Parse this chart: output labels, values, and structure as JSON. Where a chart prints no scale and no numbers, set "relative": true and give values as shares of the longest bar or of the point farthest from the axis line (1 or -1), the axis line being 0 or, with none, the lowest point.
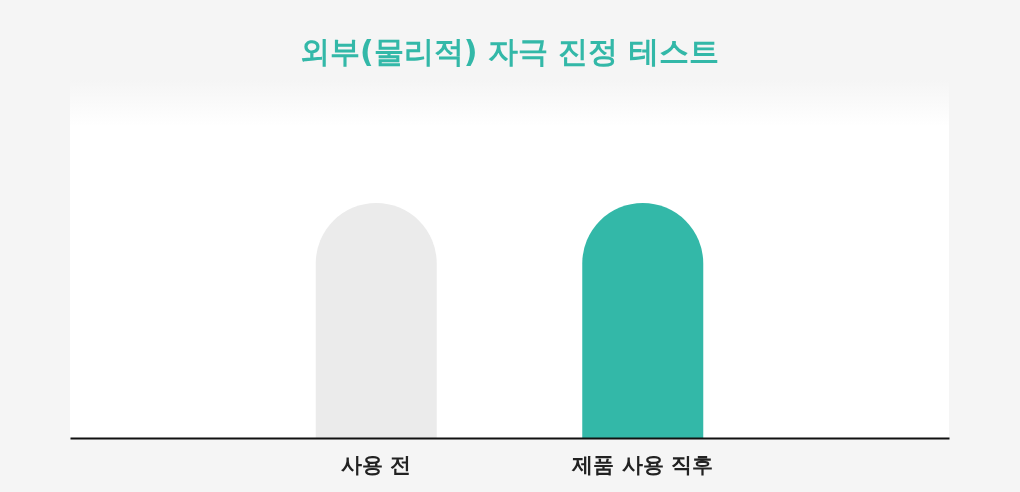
{
  "chart_data": {
    "type": "bar",
    "title": "외부(물리적) 자극 진정 테스트",
    "categories": [
      "사용 전",
      "제품 사용 직후"
    ],
    "values": [
      1,
      1
    ],
    "colors": [
      "#ebebeb",
      "#33b8a8"
    ],
    "relative": true
  }
}
